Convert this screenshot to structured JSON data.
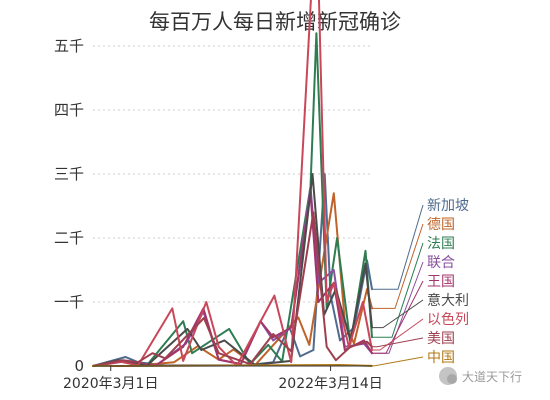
{
  "chart_data": {
    "type": "line",
    "title": "每百万人每日新增新冠确诊",
    "xlabel": "",
    "ylabel": "",
    "x_range": [
      "2020-01-01",
      "2022-08-01"
    ],
    "ylim": [
      0,
      5500
    ],
    "y_ticks": [
      {
        "value": 0,
        "label": "0"
      },
      {
        "value": 1000,
        "label": "一千"
      },
      {
        "value": 2000,
        "label": "二千"
      },
      {
        "value": 3000,
        "label": "三千"
      },
      {
        "value": 4000,
        "label": "四千"
      },
      {
        "value": 5000,
        "label": "五千"
      }
    ],
    "x_ticks": [
      {
        "date": "2020-03-01",
        "label": "2020年3月1日"
      },
      {
        "date": "2022-03-14",
        "label": "2022年3月14日"
      }
    ],
    "grid": "horizontal-dotted",
    "legend": "right",
    "series": [
      {
        "name": "新加坡",
        "color": "#4f6b8f",
        "points": [
          [
            "2020-01-01",
            0
          ],
          [
            "2020-04-20",
            140
          ],
          [
            "2020-06-01",
            60
          ],
          [
            "2020-09-01",
            10
          ],
          [
            "2021-06-01",
            10
          ],
          [
            "2021-09-01",
            60
          ],
          [
            "2021-10-25",
            620
          ],
          [
            "2021-12-01",
            150
          ],
          [
            "2022-01-15",
            250
          ],
          [
            "2022-02-22",
            3000
          ],
          [
            "2022-03-14",
            1100
          ],
          [
            "2022-04-15",
            400
          ],
          [
            "2022-06-01",
            600
          ],
          [
            "2022-07-15",
            1650
          ],
          [
            "2022-08-01",
            1200
          ]
        ]
      },
      {
        "name": "德国",
        "color": "#c0632a",
        "points": [
          [
            "2020-01-01",
            0
          ],
          [
            "2020-04-01",
            70
          ],
          [
            "2020-06-01",
            10
          ],
          [
            "2020-10-01",
            60
          ],
          [
            "2020-12-20",
            310
          ],
          [
            "2021-03-01",
            100
          ],
          [
            "2021-04-20",
            260
          ],
          [
            "2021-07-01",
            10
          ],
          [
            "2021-11-25",
            760
          ],
          [
            "2022-01-01",
            330
          ],
          [
            "2022-03-25",
            2700
          ],
          [
            "2022-05-01",
            700
          ],
          [
            "2022-06-01",
            350
          ],
          [
            "2022-07-15",
            1200
          ],
          [
            "2022-08-01",
            900
          ]
        ]
      },
      {
        "name": "法国",
        "color": "#2e7d52",
        "points": [
          [
            "2020-01-01",
            0
          ],
          [
            "2020-04-01",
            80
          ],
          [
            "2020-07-01",
            10
          ],
          [
            "2020-11-01",
            700
          ],
          [
            "2020-12-01",
            200
          ],
          [
            "2021-04-05",
            580
          ],
          [
            "2021-06-15",
            30
          ],
          [
            "2021-08-15",
            330
          ],
          [
            "2021-10-01",
            70
          ],
          [
            "2022-01-05",
            2800
          ],
          [
            "2022-01-25",
            5200
          ],
          [
            "2022-03-01",
            900
          ],
          [
            "2022-04-05",
            2000
          ],
          [
            "2022-05-20",
            350
          ],
          [
            "2022-07-10",
            1800
          ],
          [
            "2022-08-01",
            450
          ]
        ]
      },
      {
        "name": "联合",
        "color": "#8a4f9e",
        "points": [
          [
            "2020-01-01",
            0
          ],
          [
            "2020-04-10",
            80
          ],
          [
            "2020-08-01",
            10
          ],
          [
            "2020-11-10",
            350
          ],
          [
            "2021-01-08",
            850
          ],
          [
            "2021-03-01",
            100
          ],
          [
            "2021-05-15",
            30
          ],
          [
            "2021-07-20",
            700
          ],
          [
            "2021-09-01",
            400
          ],
          [
            "2021-11-01",
            600
          ],
          [
            "2022-01-05",
            2800
          ],
          [
            "2022-02-01",
            1300
          ],
          [
            "2022-03-25",
            1500
          ],
          [
            "2022-05-01",
            300
          ],
          [
            "2022-07-05",
            350
          ],
          [
            "2022-08-01",
            200
          ]
        ]
      },
      {
        "name": "王国",
        "color": "#a3356b",
        "points": [
          [
            "2020-01-01",
            0
          ],
          [
            "2020-04-15",
            70
          ],
          [
            "2020-08-01",
            10
          ],
          [
            "2020-11-01",
            300
          ],
          [
            "2021-01-08",
            900
          ],
          [
            "2021-03-01",
            100
          ],
          [
            "2021-05-15",
            30
          ],
          [
            "2021-07-20",
            700
          ],
          [
            "2021-09-01",
            450
          ],
          [
            "2021-11-01",
            600
          ],
          [
            "2022-01-05",
            2700
          ],
          [
            "2022-02-01",
            1000
          ],
          [
            "2022-03-25",
            1300
          ],
          [
            "2022-05-01",
            250
          ],
          [
            "2022-07-05",
            400
          ],
          [
            "2022-08-01",
            200
          ]
        ]
      },
      {
        "name": "意大利",
        "color": "#4a4a4a",
        "points": [
          [
            "2020-01-01",
            0
          ],
          [
            "2020-03-25",
            90
          ],
          [
            "2020-07-01",
            5
          ],
          [
            "2020-11-15",
            580
          ],
          [
            "2021-01-01",
            250
          ],
          [
            "2021-03-20",
            400
          ],
          [
            "2021-07-01",
            20
          ],
          [
            "2021-11-01",
            80
          ],
          [
            "2022-01-12",
            3000
          ],
          [
            "2022-02-20",
            800
          ],
          [
            "2022-04-01",
            1200
          ],
          [
            "2022-05-20",
            400
          ],
          [
            "2022-07-10",
            1600
          ],
          [
            "2022-08-01",
            600
          ]
        ]
      },
      {
        "name": "以色列",
        "color": "#c8485a",
        "points": [
          [
            "2020-01-01",
            0
          ],
          [
            "2020-04-01",
            70
          ],
          [
            "2020-06-01",
            10
          ],
          [
            "2020-09-25",
            900
          ],
          [
            "2020-11-01",
            80
          ],
          [
            "2021-01-18",
            1000
          ],
          [
            "2021-03-01",
            300
          ],
          [
            "2021-05-01",
            5
          ],
          [
            "2021-09-05",
            1100
          ],
          [
            "2021-11-01",
            60
          ],
          [
            "2022-01-25",
            7300
          ],
          [
            "2022-03-01",
            1000
          ],
          [
            "2022-03-25",
            1300
          ],
          [
            "2022-05-15",
            300
          ],
          [
            "2022-07-01",
            1000
          ],
          [
            "2022-08-01",
            250
          ]
        ]
      },
      {
        "name": "美国",
        "color": "#9e3f4f",
        "points": [
          [
            "2020-01-01",
            0
          ],
          [
            "2020-04-10",
            90
          ],
          [
            "2020-06-01",
            60
          ],
          [
            "2020-07-20",
            200
          ],
          [
            "2020-09-01",
            120
          ],
          [
            "2021-01-10",
            750
          ],
          [
            "2021-03-01",
            200
          ],
          [
            "2021-06-15",
            30
          ],
          [
            "2021-09-01",
            500
          ],
          [
            "2021-11-01",
            230
          ],
          [
            "2022-01-15",
            2400
          ],
          [
            "2022-03-01",
            300
          ],
          [
            "2022-04-01",
            90
          ],
          [
            "2022-05-20",
            300
          ],
          [
            "2022-07-15",
            380
          ],
          [
            "2022-08-01",
            300
          ]
        ]
      },
      {
        "name": "中国",
        "color": "#b07a18",
        "points": [
          [
            "2020-01-01",
            0
          ],
          [
            "2020-02-12",
            3
          ],
          [
            "2020-03-15",
            0
          ],
          [
            "2022-04-15",
            15
          ],
          [
            "2022-08-01",
            2
          ]
        ]
      }
    ]
  },
  "watermark": "大道天下行"
}
